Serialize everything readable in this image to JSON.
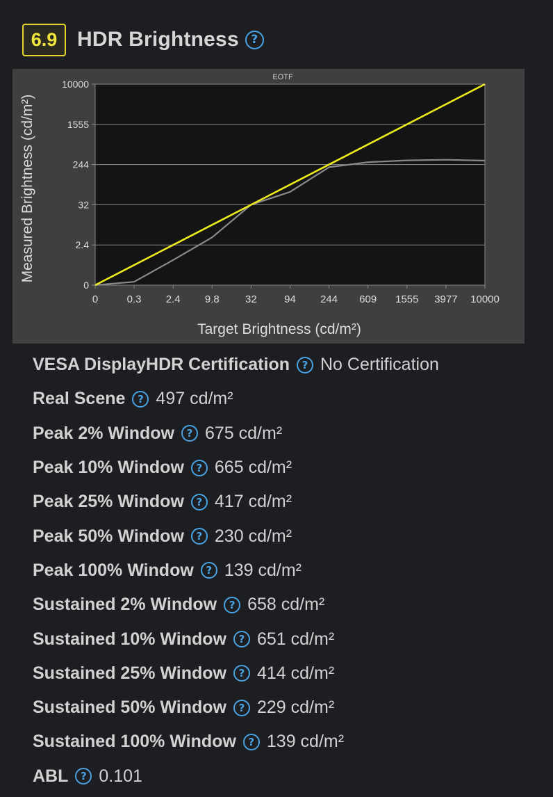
{
  "header": {
    "score": "6.9",
    "title": "HDR Brightness",
    "help_icon": "?"
  },
  "chart_data": {
    "type": "line",
    "title": "EOTF",
    "xlabel": "Target Brightness (cd/m²)",
    "ylabel": "Measured Brightness (cd/m²)",
    "x_ticks": [
      "0",
      "0.3",
      "2.4",
      "9.8",
      "32",
      "94",
      "244",
      "609",
      "1555",
      "3977",
      "10000"
    ],
    "y_ticks": [
      "0",
      "2.4",
      "32",
      "244",
      "1555",
      "10000"
    ],
    "colors": {
      "background": "#3f3f3f",
      "plot": "#141414",
      "grid": "#8a8a8a",
      "target": "#ebeb1e",
      "measured": "#8a8a8a"
    },
    "series": [
      {
        "x": [
          "0",
          "10000"
        ],
        "y": [
          "0",
          "10000"
        ],
        "color": "#ebeb1e"
      },
      {
        "x": [
          "0",
          "0.3",
          "2.4",
          "9.8",
          "32",
          "94",
          "244",
          "609",
          "1555",
          "3977",
          "10000"
        ],
        "y": [
          "0",
          "0.2",
          "1.5",
          "8",
          "32",
          "100",
          "230",
          "320",
          "380",
          "400",
          "370"
        ],
        "color": "#8a8a8a"
      }
    ]
  },
  "properties": [
    {
      "label": "VESA DisplayHDR Certification",
      "value": "No Certification"
    },
    {
      "label": "Real Scene",
      "value": "497 cd/m²"
    },
    {
      "label": "Peak 2% Window",
      "value": "675 cd/m²"
    },
    {
      "label": "Peak 10% Window",
      "value": "665 cd/m²"
    },
    {
      "label": "Peak 25% Window",
      "value": "417 cd/m²"
    },
    {
      "label": "Peak 50% Window",
      "value": "230 cd/m²"
    },
    {
      "label": "Peak 100% Window",
      "value": "139 cd/m²"
    },
    {
      "label": "Sustained 2% Window",
      "value": "658 cd/m²"
    },
    {
      "label": "Sustained 10% Window",
      "value": "651 cd/m²"
    },
    {
      "label": "Sustained 25% Window",
      "value": "414 cd/m²"
    },
    {
      "label": "Sustained 50% Window",
      "value": "229 cd/m²"
    },
    {
      "label": "Sustained 100% Window",
      "value": "139 cd/m²"
    },
    {
      "label": "ABL",
      "value": "0.101"
    }
  ]
}
